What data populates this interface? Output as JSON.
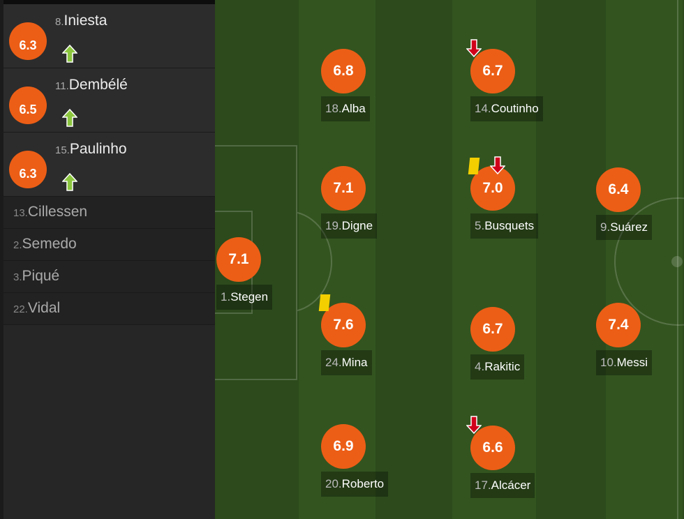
{
  "colors": {
    "rating": "#ec5e16",
    "pitch_dark": "#2c4a1c",
    "pitch_light": "#33541f",
    "sub_in": "#8cc63f",
    "sub_out": "#d0021b",
    "yellow_card": "#f3cf00"
  },
  "substitutes": [
    {
      "number": "8.",
      "name": "Iniesta",
      "rating": "6.3",
      "icon": "arrow-up-icon"
    },
    {
      "number": "11.",
      "name": "Dembélé",
      "rating": "6.5",
      "icon": "arrow-up-icon"
    },
    {
      "number": "15.",
      "name": "Paulinho",
      "rating": "6.3",
      "icon": "arrow-up-icon"
    }
  ],
  "bench": [
    {
      "number": "13.",
      "name": "Cillessen"
    },
    {
      "number": "2.",
      "name": "Semedo"
    },
    {
      "number": "3.",
      "name": "Piqué"
    },
    {
      "number": "22.",
      "name": "Vidal"
    }
  ],
  "players": [
    {
      "number": "1.",
      "name": "Stegen",
      "rating": "7.1"
    },
    {
      "number": "18.",
      "name": "Alba",
      "rating": "6.8"
    },
    {
      "number": "19.",
      "name": "Digne",
      "rating": "7.1",
      "yellow": false
    },
    {
      "number": "24.",
      "name": "Mina",
      "rating": "7.6",
      "yellow": true
    },
    {
      "number": "20.",
      "name": "Roberto",
      "rating": "6.9"
    },
    {
      "number": "14.",
      "name": "Coutinho",
      "rating": "6.7",
      "subbed_off": true
    },
    {
      "number": "5.",
      "name": "Busquets",
      "rating": "7.0",
      "yellow": true,
      "subbed_off": true
    },
    {
      "number": "4.",
      "name": "Rakitic",
      "rating": "6.7"
    },
    {
      "number": "17.",
      "name": "Alcácer",
      "rating": "6.6",
      "subbed_off": true
    },
    {
      "number": "9.",
      "name": "Suárez",
      "rating": "6.4"
    },
    {
      "number": "10.",
      "name": "Messi",
      "rating": "7.4"
    }
  ]
}
